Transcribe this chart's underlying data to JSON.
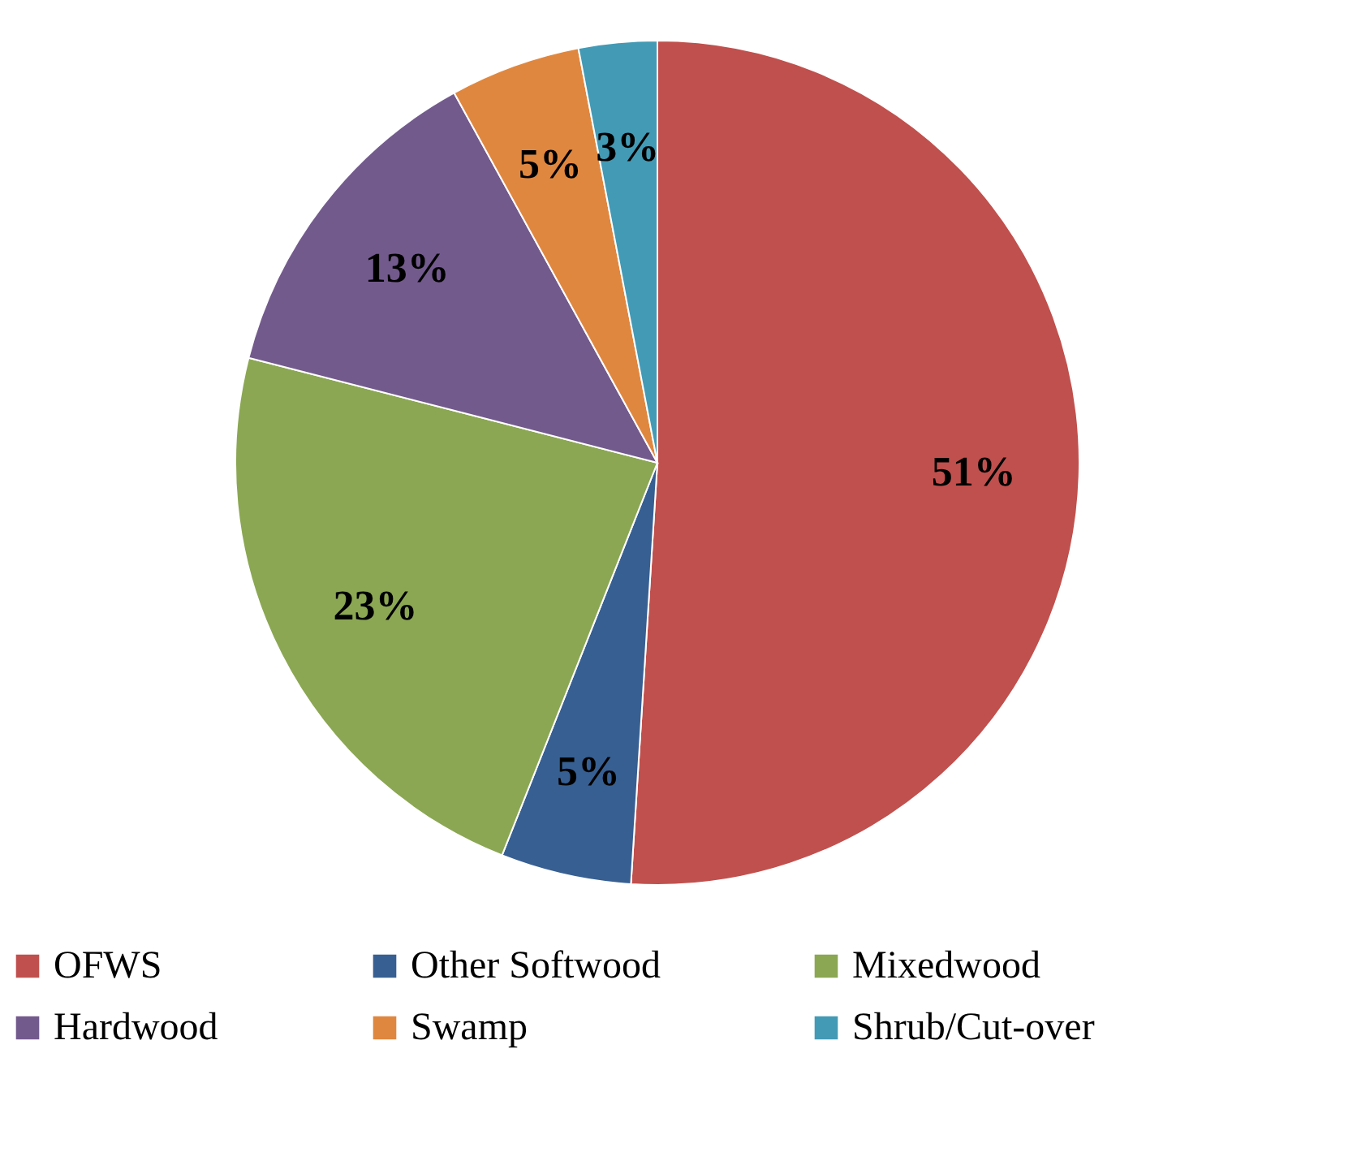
{
  "chart_data": {
    "type": "pie",
    "categories": [
      "OFWS",
      "Other Softwood",
      "Mixedwood",
      "Hardwood",
      "Swamp",
      "Shrub/Cut-over"
    ],
    "values": [
      51,
      5,
      23,
      13,
      5,
      3
    ],
    "colors": [
      "#c0504d",
      "#375f92",
      "#8ba753",
      "#735a8d",
      "#e0873f",
      "#439ab5"
    ],
    "value_labels": [
      "51%",
      "5%",
      "23%",
      "13%",
      "5%",
      "3%"
    ],
    "legend": "bottom"
  }
}
